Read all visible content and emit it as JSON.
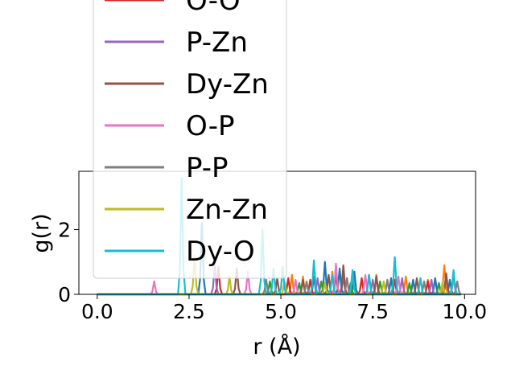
{
  "chart_data": {
    "type": "line",
    "xlabel": "r (Å)",
    "ylabel": "g(r)",
    "xlim": [
      -0.5,
      10.3
    ],
    "ylim": [
      0,
      3.8
    ],
    "x_ticks": [
      0.0,
      2.5,
      5.0,
      7.5,
      10.0
    ],
    "x_tick_labels": [
      "0.0",
      "2.5",
      "5.0",
      "7.5",
      "10.0"
    ],
    "y_ticks": [
      0,
      2
    ],
    "y_tick_labels": [
      "0",
      "2"
    ],
    "grid": false,
    "legend_position": "top-left, extending above the axes",
    "legend_entries_visible": [
      "O-O",
      "P-Zn",
      "Dy-Zn",
      "O-P",
      "P-P",
      "Zn-Zn",
      "Dy-O"
    ],
    "series": [
      {
        "name": "",
        "color": "#1f77b4",
        "peaks": [
          [
            2.85,
            2.2
          ],
          [
            5.9,
            0.55
          ],
          [
            6.2,
            1.0
          ],
          [
            6.6,
            0.8
          ],
          [
            7.0,
            0.7
          ],
          [
            7.4,
            0.6
          ],
          [
            8.0,
            0.5
          ],
          [
            8.6,
            0.45
          ],
          [
            9.2,
            0.5
          ],
          [
            9.6,
            0.45
          ]
        ]
      },
      {
        "name": "",
        "color": "#ff7f0e",
        "peaks": [
          [
            5.3,
            0.6
          ],
          [
            5.6,
            0.55
          ],
          [
            6.4,
            0.7
          ],
          [
            6.8,
            0.5
          ],
          [
            7.6,
            0.6
          ],
          [
            8.4,
            0.55
          ],
          [
            9.0,
            0.45
          ],
          [
            9.45,
            0.9
          ]
        ]
      },
      {
        "name": "",
        "color": "#2ca02c",
        "peaks": [
          [
            4.7,
            0.4
          ],
          [
            5.5,
            0.35
          ],
          [
            6.1,
            0.4
          ],
          [
            6.9,
            0.35
          ],
          [
            7.7,
            0.4
          ],
          [
            8.5,
            0.35
          ],
          [
            9.3,
            0.35
          ]
        ]
      },
      {
        "name": "O-O",
        "color": "#d62728",
        "peaks": [
          [
            3.3,
            0.85
          ],
          [
            5.2,
            0.5
          ],
          [
            5.8,
            0.45
          ],
          [
            6.5,
            0.6
          ],
          [
            7.2,
            0.5
          ],
          [
            8.1,
            0.45
          ],
          [
            9.0,
            0.4
          ]
        ]
      },
      {
        "name": "P-Zn",
        "color": "#9467bd",
        "peaks": [
          [
            3.2,
            0.9
          ],
          [
            6.0,
            0.5
          ],
          [
            6.7,
            0.55
          ],
          [
            7.5,
            0.45
          ],
          [
            8.3,
            0.5
          ],
          [
            9.1,
            0.45
          ]
        ]
      },
      {
        "name": "Dy-Zn",
        "color": "#8c564b",
        "peaks": [
          [
            3.8,
            0.8
          ],
          [
            4.9,
            0.5
          ],
          [
            5.6,
            0.45
          ],
          [
            6.3,
            0.6
          ],
          [
            6.7,
            0.9
          ],
          [
            7.6,
            0.55
          ],
          [
            8.7,
            0.5
          ],
          [
            9.5,
            0.65
          ]
        ]
      },
      {
        "name": "O-P",
        "color": "#e377c2",
        "peaks": [
          [
            1.55,
            0.4
          ],
          [
            4.1,
            0.7
          ],
          [
            5.4,
            0.45
          ],
          [
            6.5,
            0.95
          ],
          [
            7.3,
            0.6
          ],
          [
            8.2,
            0.55
          ],
          [
            9.7,
            0.5
          ]
        ]
      },
      {
        "name": "P-P",
        "color": "#7f7f7f",
        "peaks": [
          [
            4.6,
            0.45
          ],
          [
            5.7,
            0.4
          ],
          [
            6.8,
            0.5
          ],
          [
            7.9,
            0.45
          ],
          [
            8.9,
            0.4
          ],
          [
            9.8,
            0.4
          ]
        ]
      },
      {
        "name": "Zn-Zn",
        "color": "#bcbd22",
        "peaks": [
          [
            2.65,
            1.2
          ],
          [
            3.6,
            0.55
          ],
          [
            5.1,
            0.4
          ],
          [
            6.2,
            0.35
          ],
          [
            7.8,
            0.4
          ],
          [
            9.4,
            0.35
          ]
        ]
      },
      {
        "name": "Dy-O",
        "color": "#17becf",
        "peaks": [
          [
            2.3,
            3.6
          ],
          [
            4.5,
            2.0
          ],
          [
            4.8,
            0.8
          ],
          [
            5.05,
            0.85
          ],
          [
            5.9,
            1.05
          ],
          [
            6.4,
            0.6
          ],
          [
            6.95,
            0.75
          ],
          [
            7.4,
            0.6
          ],
          [
            8.1,
            1.15
          ],
          [
            8.8,
            0.5
          ],
          [
            9.7,
            0.75
          ]
        ]
      }
    ]
  }
}
